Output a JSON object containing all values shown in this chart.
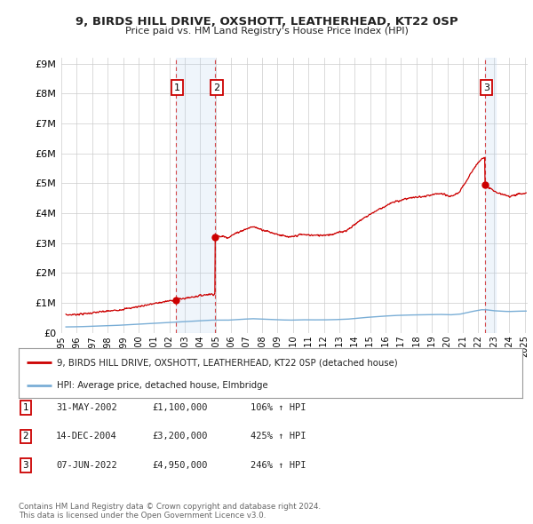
{
  "title": "9, BIRDS HILL DRIVE, OXSHOTT, LEATHERHEAD, KT22 0SP",
  "subtitle": "Price paid vs. HM Land Registry's House Price Index (HPI)",
  "ytick_values": [
    0,
    1000000,
    2000000,
    3000000,
    4000000,
    5000000,
    6000000,
    7000000,
    8000000,
    9000000
  ],
  "ylim": [
    0,
    9200000
  ],
  "xlim_start": 1995.3,
  "xlim_end": 2025.2,
  "sale_dates": [
    2002.41,
    2004.96,
    2022.44
  ],
  "sale_prices": [
    1100000,
    3200000,
    4950000
  ],
  "sale_labels": [
    "1",
    "2",
    "3"
  ],
  "red_color": "#cc0000",
  "blue_color": "#7aaed6",
  "shade_color": "#ddeeff",
  "grid_color": "#cccccc",
  "background_color": "#ffffff",
  "legend_entries": [
    "9, BIRDS HILL DRIVE, OXSHOTT, LEATHERHEAD, KT22 0SP (detached house)",
    "HPI: Average price, detached house, Elmbridge"
  ],
  "table_entries": [
    {
      "label": "1",
      "date": "31-MAY-2002",
      "price": "£1,100,000",
      "pct": "106% ↑ HPI"
    },
    {
      "label": "2",
      "date": "14-DEC-2004",
      "price": "£3,200,000",
      "pct": "425% ↑ HPI"
    },
    {
      "label": "3",
      "date": "07-JUN-2022",
      "price": "£4,950,000",
      "pct": "246% ↑ HPI"
    }
  ],
  "footnote": "Contains HM Land Registry data © Crown copyright and database right 2024.\nThis data is licensed under the Open Government Licence v3.0.",
  "xtick_years": [
    1995,
    1996,
    1997,
    1998,
    1999,
    2000,
    2001,
    2002,
    2003,
    2004,
    2005,
    2006,
    2007,
    2008,
    2009,
    2010,
    2011,
    2012,
    2013,
    2014,
    2015,
    2016,
    2017,
    2018,
    2019,
    2020,
    2021,
    2022,
    2023,
    2024,
    2025
  ]
}
